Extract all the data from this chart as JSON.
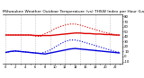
{
  "title": "Milwaukee Weather Outdoor Temperature (vs) THSW Index per Hour (Last 24 Hours)",
  "hours": [
    0,
    1,
    2,
    3,
    4,
    5,
    6,
    7,
    8,
    9,
    10,
    11,
    12,
    13,
    14,
    15,
    16,
    17,
    18,
    19,
    20,
    21,
    22,
    23
  ],
  "red_solid_y": [
    43,
    43,
    43,
    43,
    43,
    43,
    42,
    42,
    42,
    42,
    43,
    44,
    45,
    46,
    47,
    47,
    46,
    46,
    45,
    45,
    44,
    44,
    43,
    43
  ],
  "red_dot_y": [
    43,
    43,
    43,
    43,
    43,
    43,
    41,
    40,
    46,
    50,
    56,
    60,
    63,
    65,
    65,
    63,
    60,
    57,
    54,
    51,
    48,
    46,
    44,
    42
  ],
  "blue_solid_y": [
    8,
    10,
    11,
    10,
    9,
    8,
    7,
    6,
    5,
    7,
    9,
    11,
    13,
    15,
    16,
    15,
    14,
    13,
    12,
    11,
    10,
    9,
    8,
    7
  ],
  "blue_dot_y": [
    8,
    10,
    11,
    10,
    9,
    8,
    7,
    6,
    9,
    13,
    19,
    25,
    30,
    33,
    33,
    31,
    28,
    25,
    22,
    19,
    16,
    13,
    10,
    8
  ],
  "bg_color": "#ffffff",
  "grid_color": "#b0b0b0",
  "red_color": "#dd0000",
  "blue_color": "#0000dd",
  "title_fontsize": 3.2,
  "tick_fontsize": 2.8,
  "ylim": [
    -15,
    85
  ],
  "yticks": [
    80,
    70,
    60,
    50,
    40,
    30,
    20,
    10,
    0,
    -10
  ],
  "ytick_labels": [
    "80",
    "70",
    "60",
    "50",
    "40",
    "30",
    "20",
    "10",
    "0",
    "-10"
  ],
  "vgrid_positions": [
    0,
    3,
    6,
    9,
    12,
    15,
    18,
    21
  ]
}
